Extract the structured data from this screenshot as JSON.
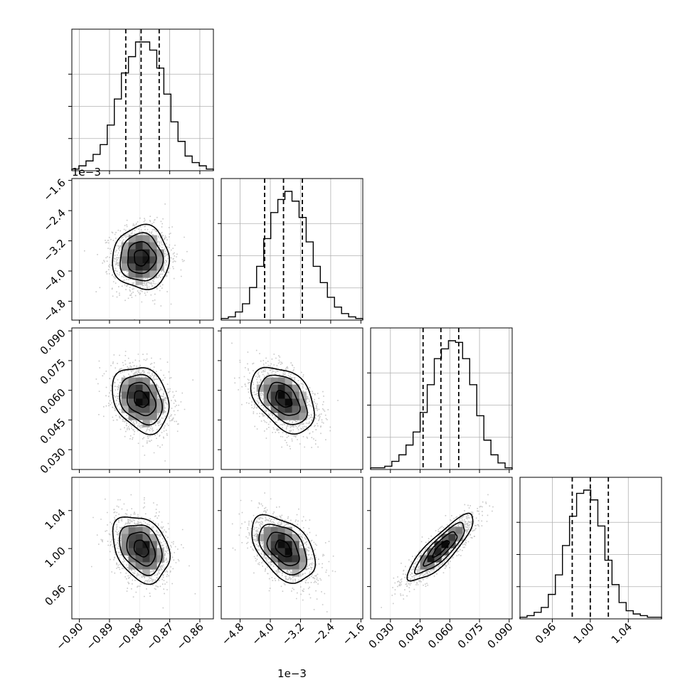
{
  "chart_data": {
    "type": "corner",
    "grid": true,
    "parameters": [
      {
        "range": [
          -0.9025,
          -0.8555
        ],
        "ticks": [
          -0.9,
          -0.89,
          -0.88,
          -0.87,
          -0.86
        ],
        "tick_labels": [
          "−0.90",
          "−0.89",
          "−0.88",
          "−0.87",
          "−0.86"
        ],
        "offset_label": "",
        "quantiles": [
          -0.8846,
          -0.8795,
          -0.8735
        ],
        "hist_counts": [
          1,
          3,
          6,
          10,
          16,
          28,
          44,
          60,
          70,
          79,
          79,
          74,
          63,
          47,
          30,
          18,
          9,
          5,
          3,
          1
        ]
      },
      {
        "range": [
          -5.3,
          -1.55
        ],
        "ticks": [
          -4.8,
          -4.0,
          -3.2,
          -2.4,
          -1.6
        ],
        "tick_labels": [
          "−4.8",
          "−4.0",
          "−3.2",
          "−2.4",
          "−1.6"
        ],
        "offset_label": "1e−3",
        "quantiles": [
          -4.15,
          -3.65,
          -3.15
        ],
        "hist_counts": [
          1,
          2,
          5,
          10,
          20,
          33,
          50,
          66,
          74,
          79,
          73,
          63,
          48,
          33,
          23,
          14,
          8,
          4,
          2,
          1
        ]
      },
      {
        "range": [
          0.02,
          0.0915
        ],
        "ticks": [
          0.03,
          0.045,
          0.06,
          0.075,
          0.09
        ],
        "tick_labels": [
          "0.030",
          "0.045",
          "0.060",
          "0.075",
          "0.090"
        ],
        "offset_label": "",
        "quantiles": [
          0.0465,
          0.0555,
          0.0645
        ],
        "hist_counts": [
          1,
          1,
          2,
          5,
          9,
          15,
          23,
          35,
          52,
          68,
          74,
          79,
          78,
          68,
          52,
          33,
          18,
          9,
          4,
          1
        ]
      },
      {
        "range": [
          0.926,
          1.075
        ],
        "ticks": [
          0.96,
          1.0,
          1.04
        ],
        "tick_labels": [
          "0.96",
          "1.00",
          "1.04"
        ],
        "offset_label": "",
        "quantiles": [
          0.981,
          1.0,
          1.019
        ],
        "hist_counts": [
          1,
          2,
          4,
          7,
          15,
          27,
          45,
          63,
          77,
          79,
          73,
          57,
          36,
          21,
          10,
          5,
          3,
          2,
          1,
          1
        ]
      }
    ],
    "marginal_y_ticks": [
      0.25,
      0.5,
      0.75
    ],
    "pairs": [
      {
        "row": 1,
        "col": 0,
        "mean": [
          -0.8795,
          -3.65
        ],
        "std": [
          0.0047,
          0.42
        ],
        "corr": 0.0
      },
      {
        "row": 2,
        "col": 0,
        "mean": [
          -0.8795,
          0.0555
        ],
        "std": [
          0.0047,
          0.0083
        ],
        "corr": -0.25
      },
      {
        "row": 2,
        "col": 1,
        "mean": [
          -3.65,
          0.0555
        ],
        "std": [
          0.42,
          0.0083
        ],
        "corr": -0.4
      },
      {
        "row": 3,
        "col": 0,
        "mean": [
          -0.8795,
          1.0
        ],
        "std": [
          0.0047,
          0.0175
        ],
        "corr": -0.3
      },
      {
        "row": 3,
        "col": 1,
        "mean": [
          -3.65,
          1.0
        ],
        "std": [
          0.42,
          0.0175
        ],
        "corr": -0.45
      },
      {
        "row": 3,
        "col": 2,
        "mean": [
          0.0555,
          1.0
        ],
        "std": [
          0.0083,
          0.0175
        ],
        "corr": 0.85
      }
    ],
    "contour_levels_sigma": [
      0.5,
      1.0,
      1.5,
      2.0
    ],
    "colors": {
      "line": "#000000",
      "grid": "#b0b0b0",
      "scatter": "#9a9a9a",
      "dark": "#000000"
    }
  }
}
